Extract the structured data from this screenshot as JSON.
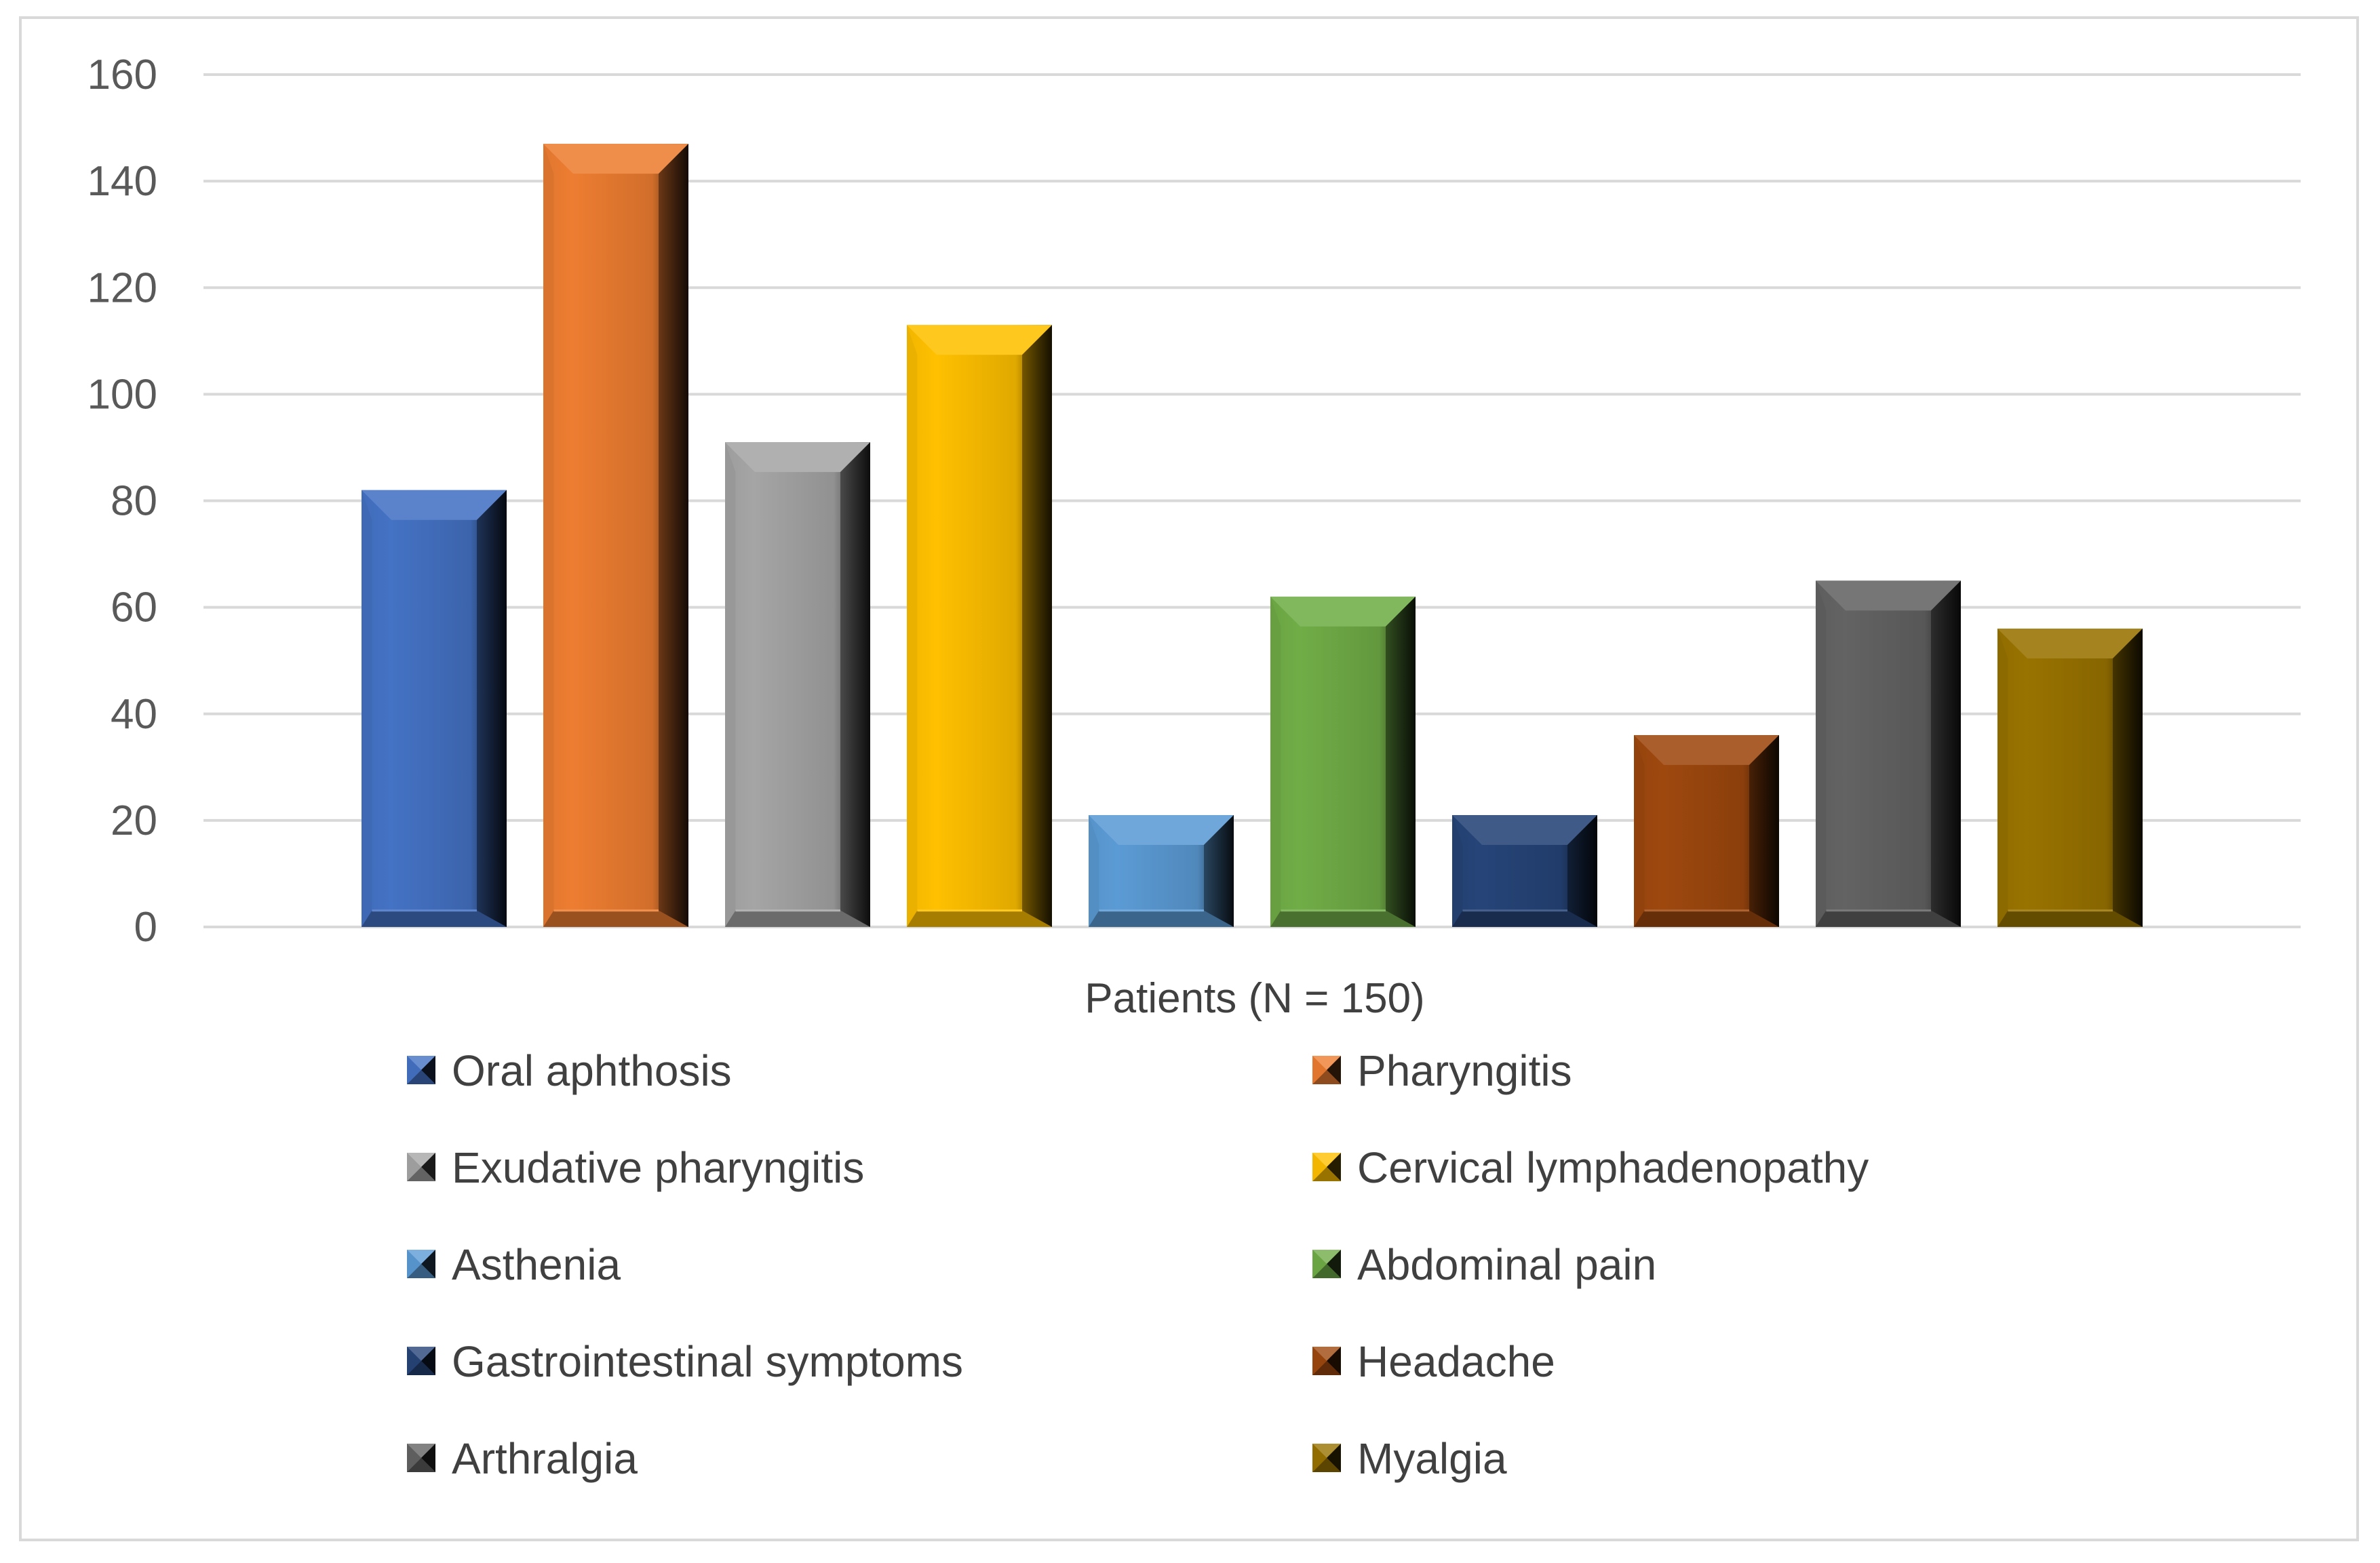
{
  "chart_data": {
    "type": "bar",
    "title": "",
    "xlabel": "Patients (N = 150)",
    "ylabel": "",
    "ylim": [
      0,
      160
    ],
    "yticks": [
      0,
      20,
      40,
      60,
      80,
      100,
      120,
      140,
      160
    ],
    "grid": true,
    "legend_position": "bottom",
    "series": [
      {
        "name": "Oral aphthosis",
        "value": 82,
        "color": "#4472C4"
      },
      {
        "name": "Pharyngitis",
        "value": 147,
        "color": "#ED7D31"
      },
      {
        "name": "Exudative pharyngitis",
        "value": 91,
        "color": "#A5A5A5"
      },
      {
        "name": "Cervical lymphadenopathy",
        "value": 113,
        "color": "#FFC000"
      },
      {
        "name": "Asthenia",
        "value": 21,
        "color": "#5B9BD5"
      },
      {
        "name": "Abdominal pain",
        "value": 62,
        "color": "#70AD47"
      },
      {
        "name": "Gastrointestinal symptoms",
        "value": 21,
        "color": "#264478"
      },
      {
        "name": "Headache",
        "value": 36,
        "color": "#9E480E"
      },
      {
        "name": "Arthralgia",
        "value": 65,
        "color": "#636363"
      },
      {
        "name": "Myalgia",
        "value": 56,
        "color": "#997300"
      }
    ]
  }
}
